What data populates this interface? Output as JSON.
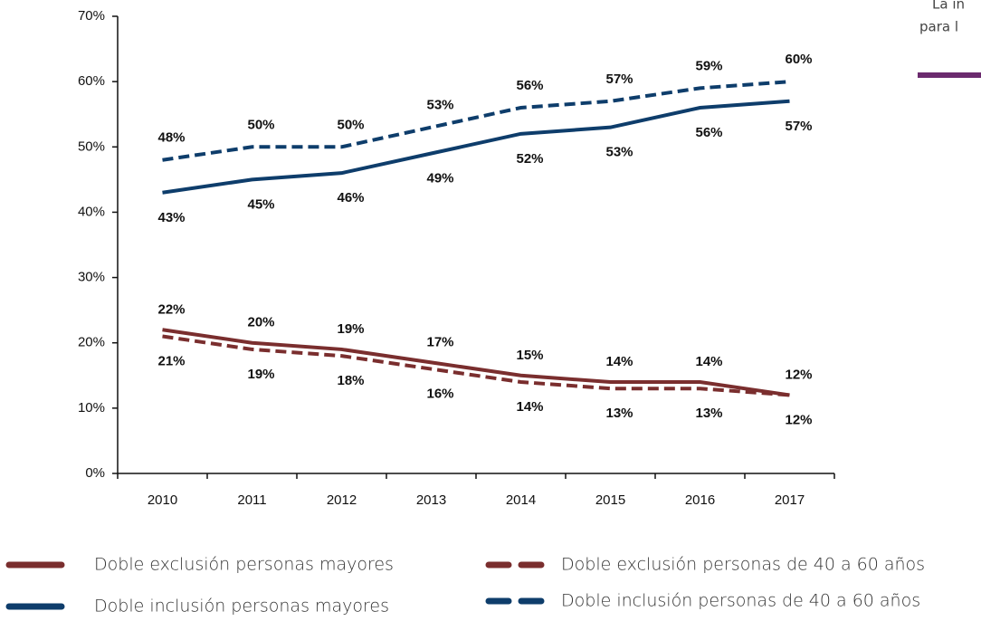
{
  "chart_data": {
    "type": "line",
    "categories": [
      "2010",
      "2011",
      "2012",
      "2013",
      "2014",
      "2015",
      "2016",
      "2017"
    ],
    "series": [
      {
        "name": "Doble exclusión personas mayores",
        "color": "#7a2e2e",
        "dashed": false,
        "values": [
          22,
          20,
          19,
          17,
          15,
          14,
          14,
          12
        ],
        "value_labels": [
          "22%",
          "20%",
          "19%",
          "17%",
          "15%",
          "14%",
          "14%",
          "12%"
        ]
      },
      {
        "name": "Doble exclusión personas de 40 a 60 años",
        "color": "#7a2e2e",
        "dashed": true,
        "values": [
          21,
          19,
          18,
          16,
          14,
          13,
          13,
          12
        ],
        "value_labels": [
          "21%",
          "19%",
          "18%",
          "16%",
          "14%",
          "13%",
          "13%",
          "12%"
        ]
      },
      {
        "name": "Doble inclusión personas mayores",
        "color": "#0e3d6b",
        "dashed": false,
        "values": [
          43,
          45,
          46,
          49,
          52,
          53,
          56,
          57
        ],
        "value_labels": [
          "43%",
          "45%",
          "46%",
          "49%",
          "52%",
          "53%",
          "56%",
          "57%"
        ]
      },
      {
        "name": "Doble inclusión personas de 40 a 60 años",
        "color": "#0e3d6b",
        "dashed": true,
        "values": [
          48,
          50,
          50,
          53,
          56,
          57,
          59,
          60
        ],
        "value_labels": [
          "48%",
          "50%",
          "50%",
          "53%",
          "56%",
          "57%",
          "59%",
          "60%"
        ]
      }
    ],
    "ylim": [
      0,
      70
    ],
    "yticks": [
      {
        "value": 0,
        "label": "0%"
      },
      {
        "value": 10,
        "label": "10%"
      },
      {
        "value": 20,
        "label": "20%"
      },
      {
        "value": 30,
        "label": "30%"
      },
      {
        "value": 40,
        "label": "40%"
      },
      {
        "value": 50,
        "label": "50%"
      },
      {
        "value": 60,
        "label": "60%"
      },
      {
        "value": 70,
        "label": "70%"
      }
    ],
    "grid": false
  },
  "sidebar": {
    "lines": [
      "La in",
      "para l"
    ]
  }
}
